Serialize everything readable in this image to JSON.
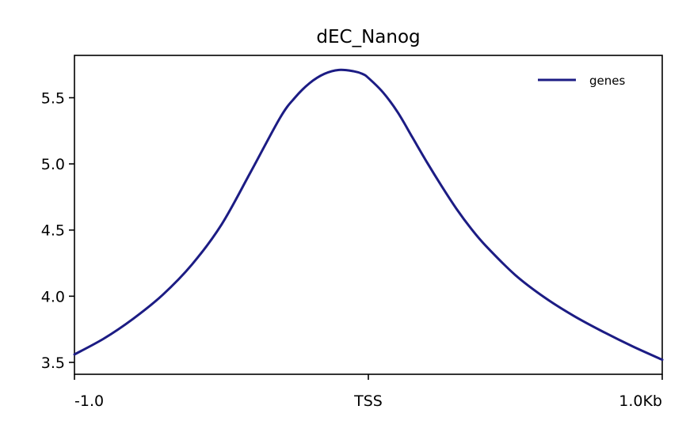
{
  "chart_data": {
    "type": "line",
    "title": "dEC_Nanog",
    "xlabel": "",
    "ylabel": "",
    "x_ticks": [
      {
        "value": -1000,
        "label": "-1.0"
      },
      {
        "value": 0,
        "label": "TSS"
      },
      {
        "value": 1000,
        "label": "1.0Kb"
      }
    ],
    "y_ticks": [
      {
        "value": 3.5,
        "label": "3.5"
      },
      {
        "value": 4.0,
        "label": "4.0"
      },
      {
        "value": 4.5,
        "label": "4.5"
      },
      {
        "value": 5.0,
        "label": "5.0"
      },
      {
        "value": 5.5,
        "label": "5.5"
      }
    ],
    "xlim": [
      -1000,
      1000
    ],
    "ylim": [
      3.41,
      5.82
    ],
    "grid": false,
    "legend_position": "top-right",
    "series": [
      {
        "name": "genes",
        "color": "#1c1c84",
        "x": [
          -1000,
          -900,
          -800,
          -700,
          -600,
          -500,
          -400,
          -300,
          -250,
          -200,
          -150,
          -100,
          -50,
          -20,
          0,
          50,
          100,
          150,
          200,
          250,
          300,
          350,
          400,
          500,
          600,
          700,
          800,
          900,
          1000
        ],
        "y": [
          3.56,
          3.68,
          3.83,
          4.01,
          4.24,
          4.54,
          4.94,
          5.35,
          5.5,
          5.61,
          5.68,
          5.71,
          5.7,
          5.68,
          5.65,
          5.54,
          5.39,
          5.2,
          5.01,
          4.83,
          4.66,
          4.51,
          4.38,
          4.16,
          3.99,
          3.85,
          3.73,
          3.62,
          3.52
        ]
      }
    ]
  }
}
